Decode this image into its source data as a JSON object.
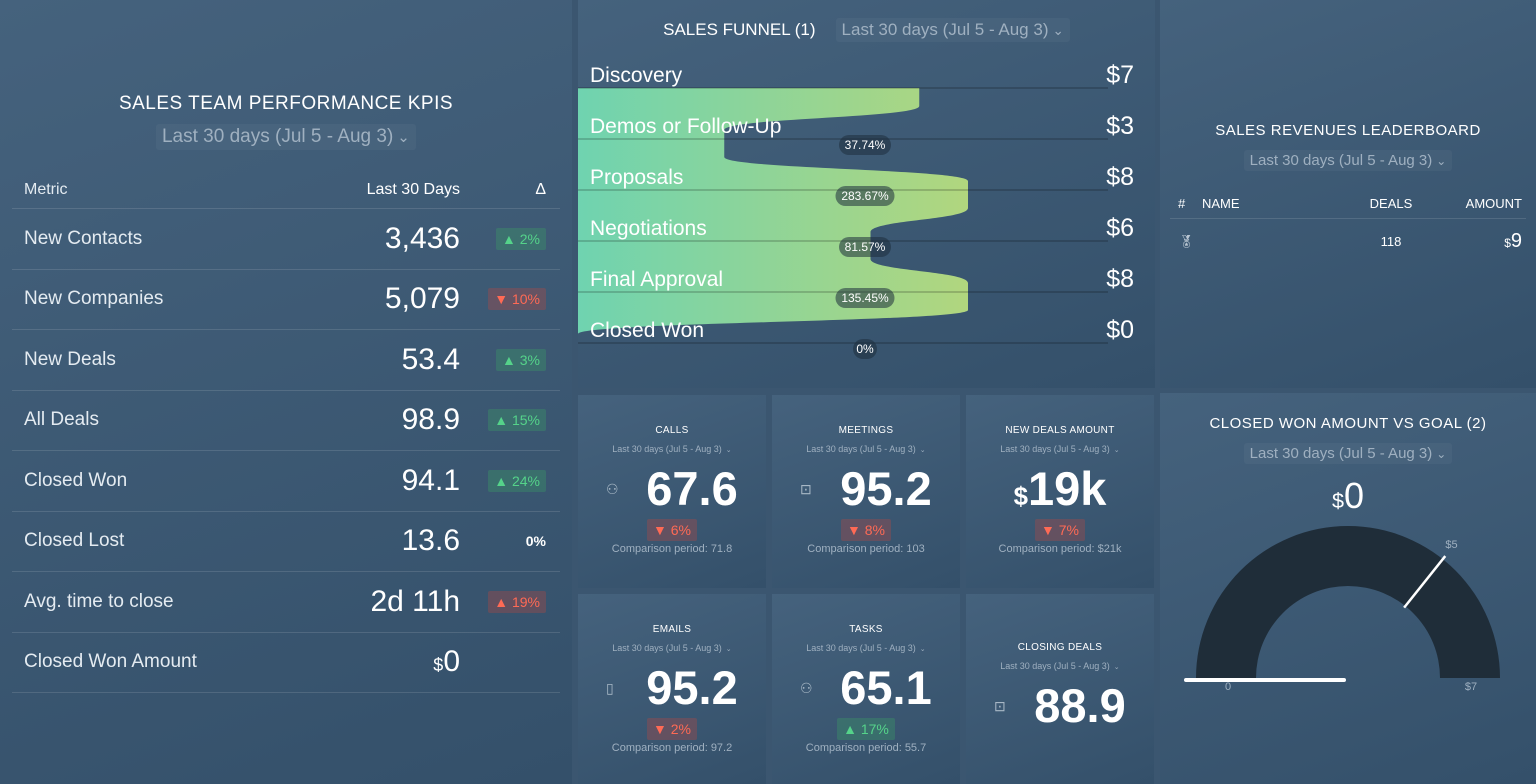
{
  "kpi": {
    "title": "SALES TEAM PERFORMANCE KPIS",
    "date_range": "Last 30 days (Jul 5 - Aug 3)",
    "headers": {
      "metric": "Metric",
      "value": "Last 30 Days",
      "delta": "Δ"
    },
    "rows": [
      {
        "metric": "New Contacts",
        "prefix": "",
        "value": "3,436",
        "delta": "▲ 2%",
        "dir": "up"
      },
      {
        "metric": "New Companies",
        "prefix": "",
        "value": "5,079",
        "delta": "▼ 10%",
        "dir": "down"
      },
      {
        "metric": "New Deals",
        "prefix": "",
        "value": "53.4",
        "delta": "▲ 3%",
        "dir": "up"
      },
      {
        "metric": "All Deals",
        "prefix": "",
        "value": "98.9",
        "delta": "▲ 15%",
        "dir": "up"
      },
      {
        "metric": "Closed Won",
        "prefix": "",
        "value": "94.1",
        "delta": "▲ 24%",
        "dir": "up"
      },
      {
        "metric": "Closed Lost",
        "prefix": "",
        "value": "13.6",
        "delta": "0%",
        "dir": "flat"
      },
      {
        "metric": "Avg. time to close",
        "prefix": "",
        "value": "2d 11h",
        "delta": "▲ 19%",
        "dir": "down"
      },
      {
        "metric": "Closed Won Amount",
        "prefix": "$",
        "value": "0",
        "delta": "",
        "dir": "flat"
      }
    ]
  },
  "funnel": {
    "title": "SALES FUNNEL (1)",
    "date_range": "Last 30 days (Jul 5 - Aug 3)",
    "gradient": [
      "#6fd3b0",
      "#b1d67e"
    ],
    "stages": [
      {
        "label": "Discovery",
        "value": 7,
        "display": "$7",
        "conversion": ""
      },
      {
        "label": "Demos or Follow-Up",
        "value": 3,
        "display": "$3",
        "conversion": "37.74%"
      },
      {
        "label": "Proposals",
        "value": 8,
        "display": "$8",
        "conversion": "283.67%"
      },
      {
        "label": "Negotiations",
        "value": 6,
        "display": "$6",
        "conversion": "81.57%"
      },
      {
        "label": "Final Approval",
        "value": 8,
        "display": "$8",
        "conversion": "135.45%"
      },
      {
        "label": "Closed Won",
        "value": 0,
        "display": "$0",
        "conversion": "0%"
      }
    ]
  },
  "leaderboard": {
    "title": "SALES REVENUES LEADERBOARD",
    "date_range": "Last 30 days (Jul 5 - Aug 3)",
    "headers": {
      "rank": "#",
      "name": "NAME",
      "deals": "DEALS",
      "amount": "AMOUNT"
    },
    "rows": [
      {
        "rank_icon": "medal-icon",
        "name": "",
        "deals": "118",
        "amount_prefix": "$",
        "amount": "9"
      }
    ]
  },
  "tiles": [
    {
      "title": "CALLS",
      "date_range": "Last 30 days (Jul 5 - Aug 3)",
      "icon": "user-icon",
      "prefix": "",
      "value": "67.6",
      "delta": "▼ 6%",
      "dir": "down",
      "comparison": "Comparison period: 71.8"
    },
    {
      "title": "MEETINGS",
      "date_range": "Last 30 days (Jul 5 - Aug 3)",
      "icon": "briefcase-icon",
      "prefix": "",
      "value": "95.2",
      "delta": "▼ 8%",
      "dir": "down",
      "comparison": "Comparison period: 103"
    },
    {
      "title": "NEW DEALS AMOUNT",
      "date_range": "Last 30 days (Jul 5 - Aug 3)",
      "icon": "",
      "prefix": "$",
      "value": "19k",
      "delta": "▼ 7%",
      "dir": "down",
      "comparison": "Comparison period: $21k"
    },
    {
      "title": "EMAILS",
      "date_range": "Last 30 days (Jul 5 - Aug 3)",
      "icon": "document-icon",
      "prefix": "",
      "value": "95.2",
      "delta": "▼ 2%",
      "dir": "down",
      "comparison": "Comparison period: 97.2"
    },
    {
      "title": "TASKS",
      "date_range": "Last 30 days (Jul 5 - Aug 3)",
      "icon": "user-icon",
      "prefix": "",
      "value": "65.1",
      "delta": "▲ 17%",
      "dir": "up",
      "comparison": "Comparison period: 55.7"
    },
    {
      "title": "CLOSING DEALS",
      "date_range": "Last 30 days (Jul 5 - Aug 3)",
      "icon": "briefcase-icon",
      "prefix": "",
      "value": "88.9",
      "delta": "",
      "dir": "",
      "comparison": ""
    }
  ],
  "gauge": {
    "title": "CLOSED WON AMOUNT VS GOAL (2)",
    "date_range": "Last 30 days (Jul 5 - Aug 3)",
    "value_prefix": "$",
    "value": 0,
    "value_display": "0",
    "min": 0,
    "max": 7,
    "goal": 5,
    "min_label": "0",
    "max_label": "$7",
    "goal_label": "$5"
  }
}
